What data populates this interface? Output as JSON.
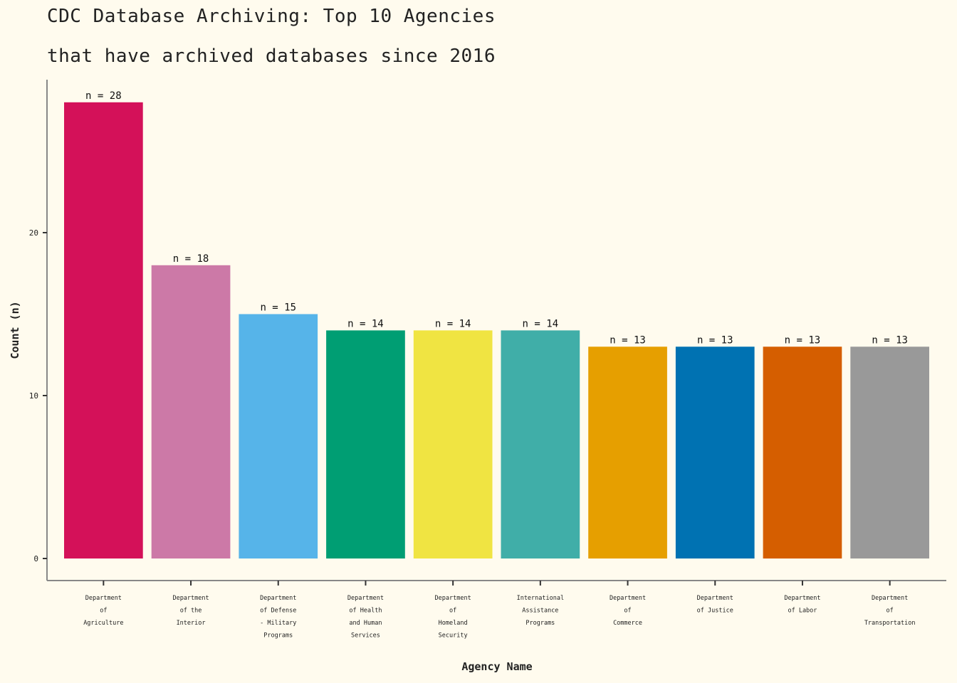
{
  "chart_data": {
    "type": "bar",
    "title": "CDC Database Archiving: Top 10 Agencies",
    "subtitle": "that have archived databases since 2016",
    "xlabel": "Agency Name",
    "ylabel": "Count (n)",
    "ylim": [
      0,
      28
    ],
    "yticks": [
      "0",
      "10",
      "20"
    ],
    "grid": false,
    "legend": "none",
    "categories": [
      [
        "Department",
        "of",
        "Agriculture"
      ],
      [
        "Department",
        "of the",
        "Interior"
      ],
      [
        "Department",
        "of Defense",
        "- Military",
        "Programs"
      ],
      [
        "Department",
        "of Health",
        "and Human",
        "Services"
      ],
      [
        "Department",
        "of",
        "Homeland",
        "Security"
      ],
      [
        "International",
        "Assistance",
        "Programs"
      ],
      [
        "Department",
        "of",
        "Commerce"
      ],
      [
        "Department",
        "of Justice"
      ],
      [
        "Department",
        "of Labor"
      ],
      [
        "Department",
        "of",
        "Transportation"
      ]
    ],
    "values": [
      28,
      18,
      15,
      14,
      14,
      14,
      13,
      13,
      13,
      13
    ],
    "data_labels": [
      "n = 28",
      "n = 18",
      "n = 15",
      "n = 14",
      "n = 14",
      "n = 14",
      "n = 13",
      "n = 13",
      "n = 13",
      "n = 13"
    ],
    "colors": [
      "#d41159",
      "#cc79a7",
      "#56b4e9",
      "#009e73",
      "#f0e442",
      "#40aea8",
      "#e69f00",
      "#0072b2",
      "#d55e00",
      "#999999"
    ]
  }
}
